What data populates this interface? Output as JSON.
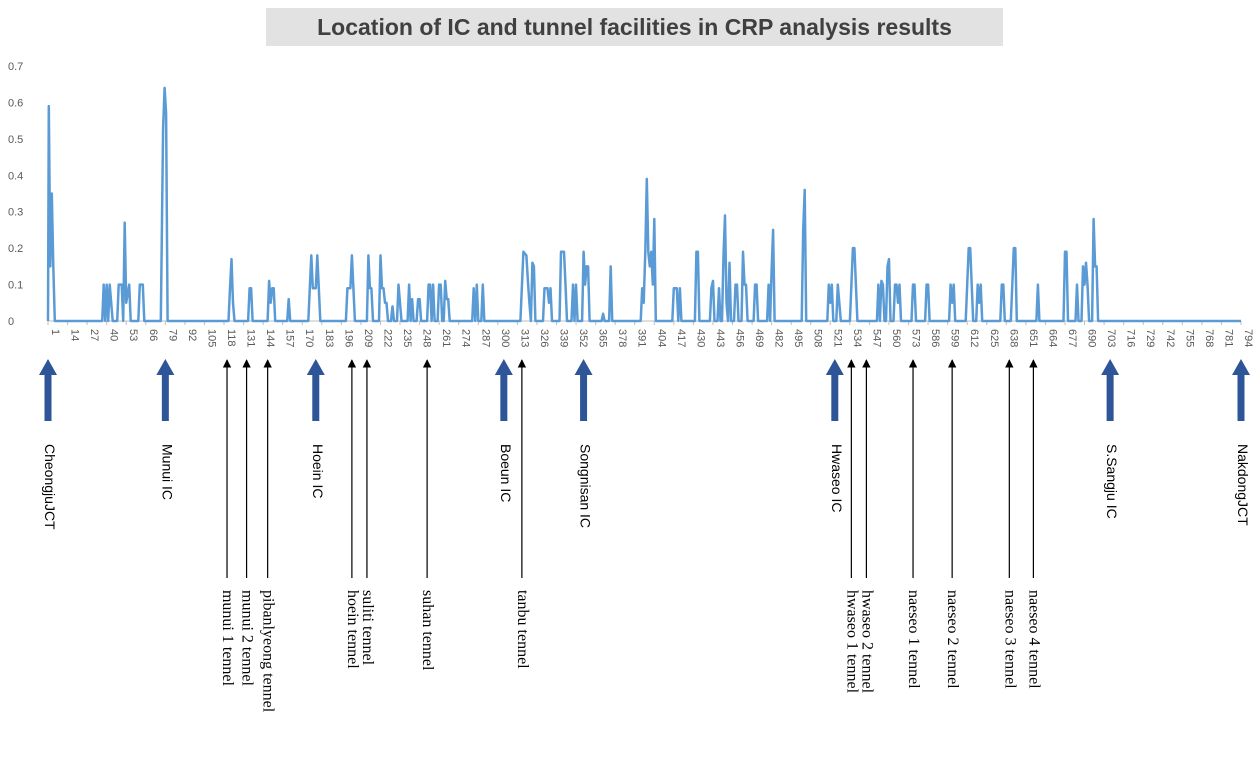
{
  "chart_data": {
    "type": "line",
    "title": "Location of IC and tunnel facilities in CRP analysis results",
    "xlabel": "",
    "ylabel": "",
    "ylim": [
      0,
      0.7
    ],
    "yticks": [
      "0",
      "0.1",
      "0.2",
      "0.3",
      "0.4",
      "0.5",
      "0.6",
      "0.7"
    ],
    "xlim": [
      1,
      794
    ],
    "xticks": [
      "1",
      "14",
      "27",
      "40",
      "53",
      "66",
      "79",
      "92",
      "105",
      "118",
      "131",
      "144",
      "157",
      "170",
      "183",
      "196",
      "209",
      "222",
      "235",
      "248",
      "261",
      "274",
      "287",
      "300",
      "313",
      "326",
      "339",
      "352",
      "365",
      "378",
      "391",
      "404",
      "417",
      "430",
      "443",
      "456",
      "469",
      "482",
      "495",
      "508",
      "521",
      "534",
      "547",
      "560",
      "573",
      "586",
      "599",
      "612",
      "625",
      "638",
      "651",
      "664",
      "677",
      "690",
      "703",
      "716",
      "729",
      "742",
      "755",
      "768",
      "781",
      "794"
    ],
    "grid": false,
    "series_color": "#5b9bd5",
    "points": [
      [
        1,
        0
      ],
      [
        1.5,
        0.59
      ],
      [
        2.5,
        0.15
      ],
      [
        3.5,
        0.35
      ],
      [
        4.5,
        0.15
      ],
      [
        5.5,
        0
      ],
      [
        37,
        0
      ],
      [
        38,
        0.1
      ],
      [
        39,
        0
      ],
      [
        40,
        0.1
      ],
      [
        41,
        0
      ],
      [
        42,
        0.1
      ],
      [
        44,
        0
      ],
      [
        47,
        0
      ],
      [
        48,
        0.1
      ],
      [
        50,
        0.1
      ],
      [
        51,
        0
      ],
      [
        52,
        0.27
      ],
      [
        53,
        0.05
      ],
      [
        55,
        0.1
      ],
      [
        56,
        0
      ],
      [
        61,
        0
      ],
      [
        62,
        0.1
      ],
      [
        64,
        0.1
      ],
      [
        65,
        0
      ],
      [
        76,
        0
      ],
      [
        77.5,
        0.53
      ],
      [
        78.5,
        0.64
      ],
      [
        79.5,
        0.57
      ],
      [
        80.5,
        0
      ],
      [
        121,
        0
      ],
      [
        122,
        0.09
      ],
      [
        123,
        0.17
      ],
      [
        124,
        0.05
      ],
      [
        125,
        0
      ],
      [
        134,
        0
      ],
      [
        135,
        0.09
      ],
      [
        136,
        0.09
      ],
      [
        137,
        0
      ],
      [
        147,
        0
      ],
      [
        148,
        0.11
      ],
      [
        149,
        0.05
      ],
      [
        150,
        0.09
      ],
      [
        151,
        0.09
      ],
      [
        152,
        0
      ],
      [
        160,
        0
      ],
      [
        161,
        0.06
      ],
      [
        162,
        0
      ],
      [
        174,
        0
      ],
      [
        175,
        0.09
      ],
      [
        176,
        0.18
      ],
      [
        177,
        0.09
      ],
      [
        179,
        0.09
      ],
      [
        180,
        0.18
      ],
      [
        181,
        0.09
      ],
      [
        182,
        0
      ],
      [
        199,
        0
      ],
      [
        200,
        0.09
      ],
      [
        202,
        0.09
      ],
      [
        203,
        0.18
      ],
      [
        204,
        0.09
      ],
      [
        205,
        0
      ],
      [
        213,
        0
      ],
      [
        214,
        0.18
      ],
      [
        215,
        0.09
      ],
      [
        216,
        0.09
      ],
      [
        217,
        0
      ],
      [
        221,
        0
      ],
      [
        222,
        0.18
      ],
      [
        223,
        0.09
      ],
      [
        224,
        0.09
      ],
      [
        225,
        0.05
      ],
      [
        226,
        0.05
      ],
      [
        227,
        0
      ],
      [
        229,
        0
      ],
      [
        230,
        0.04
      ],
      [
        231,
        0
      ],
      [
        233,
        0
      ],
      [
        234,
        0.1
      ],
      [
        235,
        0.05
      ],
      [
        236,
        0
      ],
      [
        240,
        0
      ],
      [
        241,
        0.1
      ],
      [
        242,
        0
      ],
      [
        243,
        0.06
      ],
      [
        244,
        0
      ],
      [
        246,
        0
      ],
      [
        247,
        0.06
      ],
      [
        248,
        0.06
      ],
      [
        249,
        0
      ],
      [
        253,
        0
      ],
      [
        254,
        0.1
      ],
      [
        255,
        0.1
      ],
      [
        256,
        0
      ],
      [
        257,
        0.1
      ],
      [
        258,
        0
      ],
      [
        260,
        0
      ],
      [
        261,
        0.1
      ],
      [
        262,
        0.1
      ],
      [
        263,
        0
      ],
      [
        264,
        0
      ],
      [
        265,
        0.11
      ],
      [
        266,
        0.06
      ],
      [
        267,
        0.06
      ],
      [
        268,
        0
      ],
      [
        283,
        0
      ],
      [
        284,
        0.09
      ],
      [
        285,
        0
      ],
      [
        286,
        0.1
      ],
      [
        287,
        0
      ],
      [
        289,
        0
      ],
      [
        290,
        0.1
      ],
      [
        291,
        0
      ],
      [
        315,
        0
      ],
      [
        317,
        0.19
      ],
      [
        319,
        0.18
      ],
      [
        320,
        0.11
      ],
      [
        321,
        0.05
      ],
      [
        322,
        0
      ],
      [
        323,
        0.16
      ],
      [
        324,
        0.15
      ],
      [
        325,
        0
      ],
      [
        330,
        0
      ],
      [
        331,
        0.09
      ],
      [
        333,
        0.09
      ],
      [
        334,
        0.05
      ],
      [
        335,
        0.09
      ],
      [
        336,
        0
      ],
      [
        341,
        0
      ],
      [
        342,
        0.19
      ],
      [
        344,
        0.19
      ],
      [
        345,
        0.1
      ],
      [
        346,
        0
      ],
      [
        349,
        0
      ],
      [
        350,
        0.1
      ],
      [
        351,
        0
      ],
      [
        352,
        0.1
      ],
      [
        353,
        0
      ],
      [
        356,
        0
      ],
      [
        357,
        0.19
      ],
      [
        358,
        0.1
      ],
      [
        359,
        0.15
      ],
      [
        360,
        0.15
      ],
      [
        361,
        0
      ],
      [
        369,
        0
      ],
      [
        370,
        0.02
      ],
      [
        371,
        0
      ],
      [
        374,
        0
      ],
      [
        375,
        0.15
      ],
      [
        376,
        0
      ],
      [
        395,
        0
      ],
      [
        396,
        0.09
      ],
      [
        397,
        0.05
      ],
      [
        398,
        0.19
      ],
      [
        399,
        0.39
      ],
      [
        400,
        0.19
      ],
      [
        401,
        0.15
      ],
      [
        402,
        0.19
      ],
      [
        403,
        0.1
      ],
      [
        404,
        0.28
      ],
      [
        405,
        0
      ],
      [
        416,
        0
      ],
      [
        417,
        0.09
      ],
      [
        419,
        0.09
      ],
      [
        420,
        0
      ],
      [
        421,
        0.09
      ],
      [
        422,
        0
      ],
      [
        431,
        0
      ],
      [
        432,
        0.19
      ],
      [
        433,
        0.19
      ],
      [
        434,
        0
      ],
      [
        441,
        0
      ],
      [
        442,
        0.09
      ],
      [
        443,
        0.11
      ],
      [
        444,
        0
      ],
      [
        446,
        0
      ],
      [
        447,
        0.09
      ],
      [
        448,
        0
      ],
      [
        449,
        0
      ],
      [
        450,
        0.18
      ],
      [
        451,
        0.29
      ],
      [
        452,
        0.05
      ],
      [
        453,
        0
      ],
      [
        454,
        0.16
      ],
      [
        455,
        0
      ],
      [
        457,
        0
      ],
      [
        458,
        0.1
      ],
      [
        459,
        0.1
      ],
      [
        460,
        0
      ],
      [
        462,
        0
      ],
      [
        463,
        0.19
      ],
      [
        464,
        0.1
      ],
      [
        465,
        0.1
      ],
      [
        466,
        0
      ],
      [
        470,
        0
      ],
      [
        471,
        0.1
      ],
      [
        472,
        0.1
      ],
      [
        473,
        0
      ],
      [
        479,
        0
      ],
      [
        480,
        0.1
      ],
      [
        481,
        0
      ],
      [
        482,
        0.14
      ],
      [
        483,
        0.25
      ],
      [
        484,
        0
      ],
      [
        502,
        0
      ],
      [
        503,
        0.25
      ],
      [
        504,
        0.36
      ],
      [
        505,
        0
      ],
      [
        519,
        0
      ],
      [
        520,
        0.1
      ],
      [
        521,
        0.05
      ],
      [
        522,
        0.1
      ],
      [
        523,
        0
      ],
      [
        525,
        0
      ],
      [
        526,
        0.1
      ],
      [
        527,
        0.05
      ],
      [
        528,
        0
      ],
      [
        534,
        0
      ],
      [
        535,
        0.1
      ],
      [
        536,
        0.2
      ],
      [
        537,
        0.2
      ],
      [
        538,
        0.1
      ],
      [
        539,
        0
      ],
      [
        552,
        0
      ],
      [
        553,
        0.1
      ],
      [
        554,
        0
      ],
      [
        555,
        0.11
      ],
      [
        556,
        0.1
      ],
      [
        557,
        0
      ],
      [
        558,
        0
      ],
      [
        559,
        0.15
      ],
      [
        560,
        0.17
      ],
      [
        561,
        0
      ],
      [
        563,
        0
      ],
      [
        564,
        0.1
      ],
      [
        565,
        0.1
      ],
      [
        566,
        0.05
      ],
      [
        567,
        0.1
      ],
      [
        568,
        0
      ],
      [
        575,
        0
      ],
      [
        576,
        0.1
      ],
      [
        577,
        0.1
      ],
      [
        578,
        0
      ],
      [
        584,
        0
      ],
      [
        585,
        0.1
      ],
      [
        586,
        0.1
      ],
      [
        587,
        0
      ],
      [
        600,
        0
      ],
      [
        601,
        0.1
      ],
      [
        602,
        0.05
      ],
      [
        603,
        0.1
      ],
      [
        604,
        0
      ],
      [
        611,
        0
      ],
      [
        612,
        0.1
      ],
      [
        613,
        0.2
      ],
      [
        614,
        0.2
      ],
      [
        615,
        0.1
      ],
      [
        616,
        0
      ],
      [
        618,
        0
      ],
      [
        619,
        0.1
      ],
      [
        620,
        0.05
      ],
      [
        621,
        0.1
      ],
      [
        622,
        0
      ],
      [
        634,
        0
      ],
      [
        635,
        0.1
      ],
      [
        636,
        0.1
      ],
      [
        637,
        0
      ],
      [
        641,
        0
      ],
      [
        642,
        0.1
      ],
      [
        643,
        0.2
      ],
      [
        644,
        0.2
      ],
      [
        645,
        0
      ],
      [
        658,
        0
      ],
      [
        659,
        0.1
      ],
      [
        660,
        0
      ],
      [
        676,
        0
      ],
      [
        677,
        0.19
      ],
      [
        678,
        0.19
      ],
      [
        679,
        0
      ],
      [
        684,
        0
      ],
      [
        685,
        0.1
      ],
      [
        686,
        0
      ],
      [
        688,
        0
      ],
      [
        689,
        0.15
      ],
      [
        690,
        0.1
      ],
      [
        691,
        0.16
      ],
      [
        692,
        0.1
      ],
      [
        693,
        0
      ],
      [
        695,
        0
      ],
      [
        696,
        0.28
      ],
      [
        697,
        0.15
      ],
      [
        698,
        0.15
      ],
      [
        699,
        0
      ],
      [
        794,
        0
      ]
    ],
    "ic_markers": [
      {
        "x": 1,
        "label": "CheongjuJCT"
      },
      {
        "x": 79,
        "label": "Munui IC"
      },
      {
        "x": 179,
        "label": "Hoein IC"
      },
      {
        "x": 304,
        "label": "Boeun IC"
      },
      {
        "x": 357,
        "label": "Songnisan IC"
      },
      {
        "x": 524,
        "label": "Hwaseo IC"
      },
      {
        "x": 707,
        "label": "S.Sangju IC"
      },
      {
        "x": 794,
        "label": "NakdongJCT"
      }
    ],
    "tunnel_markers": [
      {
        "x": 120,
        "label": "munui 1 tennel"
      },
      {
        "x": 133,
        "label": "munui 2 tennel"
      },
      {
        "x": 147,
        "label": "pibanlyeong tennel"
      },
      {
        "x": 203,
        "label": "hoein tennel"
      },
      {
        "x": 213,
        "label": "suliti tennel"
      },
      {
        "x": 253,
        "label": "suhan tennel"
      },
      {
        "x": 316,
        "label": "tanbu tennel"
      },
      {
        "x": 535,
        "label": "hwaseo 1 tennel"
      },
      {
        "x": 545,
        "label": "hwaseo 2 tennel"
      },
      {
        "x": 576,
        "label": "naeseo 1 tennel"
      },
      {
        "x": 602,
        "label": "naeseo 2 tennel"
      },
      {
        "x": 640,
        "label": "naeseo 3 tennel"
      },
      {
        "x": 656,
        "label": "naeseo 4 tennel"
      }
    ]
  }
}
